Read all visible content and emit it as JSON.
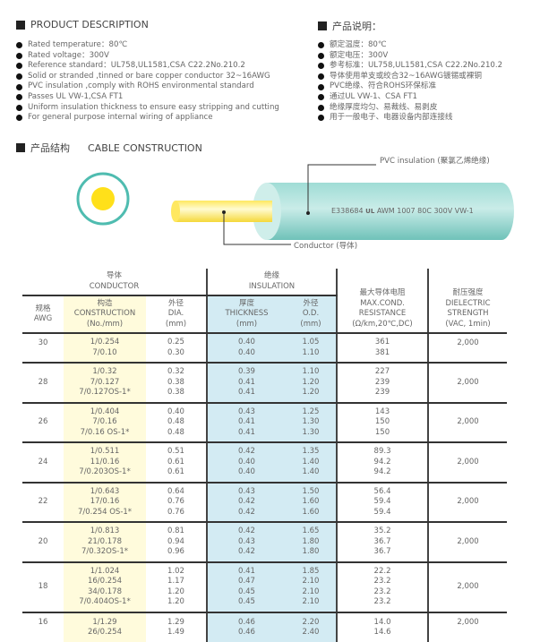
{
  "desc_en": {
    "title": "PRODUCT DESCRIPTION",
    "items": [
      "Rated temperature：80℃",
      "Rated voltage：300V",
      "Reference standard：UL758,UL1581,CSA C22.2No.210.2",
      "Solid or stranded ,tinned or bare copper conductor 32~16AWG",
      "PVC insulation ,comply with ROHS environmental standard",
      "Passes UL VW-1,CSA FT1",
      "Uniform insulation thickness to ensure easy stripping and cutting",
      "For general purpose internal wiring of appliance"
    ]
  },
  "desc_cn": {
    "title": "产品说明：",
    "items": [
      "额定温度：80℃",
      "额定电压：300V",
      "参考标准：UL758,UL1581,CSA C22.2No.210.2",
      "导体使用单支或绞合32~16AWG镀锡或裸铜",
      "PVC绝缘、符合ROHS环保标准",
      "通过UL VW-1、CSA FT1",
      "绝缘厚度均匀、易裁线、易剥皮",
      "用于一般电子、电器设备内部连接线"
    ]
  },
  "construction": {
    "title_cn": "产品结构",
    "title_en": "CABLE CONSTRUCTION",
    "pvc_label": "PVC insulation (聚氯乙烯绝缘)",
    "conductor_label": "Conductor (导体)",
    "print": "E338684",
    "ul_mark": "UL",
    "print2": "AWM 1007 80C 300V VW-1",
    "colors": {
      "insulation": "#8fd3cc",
      "conductor": "#ffe14d"
    }
  },
  "table": {
    "groups": {
      "conductor": "导体\nCONDUCTOR",
      "insulation": "绝缘\nINSULATION"
    },
    "headers": [
      "规格\nAWG",
      "构造\nCONSTRUCTION\n(No./mm)",
      "外径\nDIA.\n(mm)",
      "厚度\nTHICKNESS\n(mm)",
      "外径\nO.D.\n(mm)",
      "最大导体电阻\nMAX.COND.\nRESISTANCE\n(Ω/km,20℃,DC)",
      "耐压强度\nDIELECTRIC\nSTRENGTH\n(VAC, 1min)"
    ],
    "rows": [
      {
        "awg": "30",
        "construction": "1/0.254\n7/0.10",
        "dia": "0.25\n0.30",
        "thickness": "0.40\n0.40",
        "od": "1.05\n1.10",
        "resistance": "361\n381",
        "dielectric": "2,000"
      },
      {
        "awg": "28",
        "construction": "1/0.32\n7/0.127\n7/0.127OS-1*",
        "dia": "0.32\n0.38\n0.38",
        "thickness": "0.39\n0.41\n0.41",
        "od": "1.10\n1.20\n1.20",
        "resistance": "227\n239\n239",
        "dielectric": "2,000"
      },
      {
        "awg": "26",
        "construction": "1/0.404\n7/0.16\n7/0.16 OS-1*",
        "dia": "0.40\n0.48\n0.48",
        "thickness": "0.43\n0.41\n0.41",
        "od": "1.25\n1.30\n1.30",
        "resistance": "143\n150\n150",
        "dielectric": "2,000"
      },
      {
        "awg": "24",
        "construction": "1/0.511\n11/0.16\n7/0.203OS-1*",
        "dia": "0.51\n0.61\n0.61",
        "thickness": "0.42\n0.40\n0.40",
        "od": "1.35\n1.40\n1.40",
        "resistance": "89.3\n94.2\n94.2",
        "dielectric": "2,000"
      },
      {
        "awg": "22",
        "construction": "1/0.643\n17/0.16\n7/0.254 OS-1*",
        "dia": "0.64\n0.76\n0.76",
        "thickness": "0.43\n0.42\n0.42",
        "od": "1.50\n1.60\n1.60",
        "resistance": "56.4\n59.4\n59.4",
        "dielectric": "2,000"
      },
      {
        "awg": "20",
        "construction": "1/0.813\n21/0.178\n7/0.32OS-1*",
        "dia": "0.81\n0.94\n0.96",
        "thickness": "0.42\n0.43\n0.42",
        "od": "1.65\n1.80\n1.80",
        "resistance": "35.2\n36.7\n36.7",
        "dielectric": "2,000"
      },
      {
        "awg": "18",
        "construction": "1/1.024\n16/0.254\n34/0.178\n7/0.404OS-1*",
        "dia": "1.02\n1.17\n1.20\n1.20",
        "thickness": "0.41\n0.47\n0.45\n0.45",
        "od": "1.85\n2.10\n2.10\n2.10",
        "resistance": "22.2\n23.2\n23.2\n23.2",
        "dielectric": "2,000"
      },
      {
        "awg": "16",
        "construction": "1/1.29\n26/0.254",
        "dia": "1.29\n1.49",
        "thickness": "0.46\n0.46",
        "od": "2.20\n2.40",
        "resistance": "14.0\n14.6",
        "dielectric": "2,000"
      }
    ]
  }
}
